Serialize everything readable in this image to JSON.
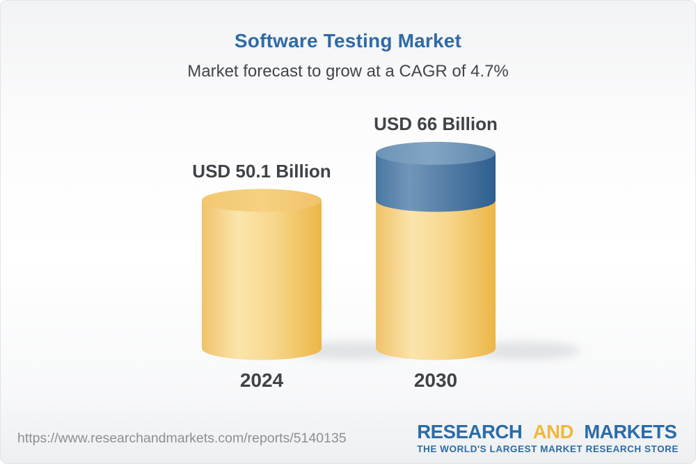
{
  "header": {
    "title": "Software Testing Market",
    "subtitle": "Market forecast to grow at a CAGR of 4.7%"
  },
  "chart_data": {
    "type": "bar",
    "style": "3d-cylinder",
    "title": "Software Testing Market",
    "subtitle": "Market forecast to grow at a CAGR of 4.7%",
    "unit": "USD Billion",
    "cagr_percent": 4.7,
    "categories": [
      "2024",
      "2030"
    ],
    "values": [
      50.1,
      66
    ],
    "value_labels": [
      "USD 50.1 Billion",
      "USD 66 Billion"
    ],
    "growth_cap": {
      "applies_to": "2030",
      "from_value": 50.1,
      "to_value": 66,
      "note": "blue cap on 2030 cylinder shows growth above 2024 base"
    },
    "ylim": [
      0,
      70
    ],
    "grid": "off",
    "legend": "none",
    "colors": {
      "bar_yellow_left": "#F0C269",
      "bar_yellow_light": "#FBE4AB",
      "bar_yellow_mid": "#F7D88F",
      "bar_yellow_right": "#ECB646",
      "bar_yellow_top_left": "#F3C870",
      "bar_yellow_top_mid": "#F6D181",
      "bar_yellow_top_right": "#F1C268",
      "cap_blue_left": "#4977A2",
      "cap_blue_light": "#7296B9",
      "cap_blue_right": "#2E5F8E",
      "cap_blue_top_left": "#6D94B7",
      "cap_blue_top_mid": "#83A5C4",
      "cap_blue_top_right": "#5E87AC",
      "shadow": "#C9CBCD"
    }
  },
  "footer": {
    "url": "https://www.researchandmarkets.com/reports/5140135",
    "logo": {
      "part1": "RESEARCH",
      "part2": "AND",
      "part3": "MARKETS",
      "tagline": "THE WORLD'S LARGEST MARKET RESEARCH STORE"
    },
    "colors": {
      "logo_blue": "#2A6CA8",
      "logo_gold": "#F0B83D"
    }
  },
  "theme": {
    "title_blue": "#2E6BA6",
    "text_dark": "#3F4347",
    "url_gray": "#8C8F92",
    "background_top": "#F2F3F4",
    "background_bottom": "#EEEFF0"
  }
}
